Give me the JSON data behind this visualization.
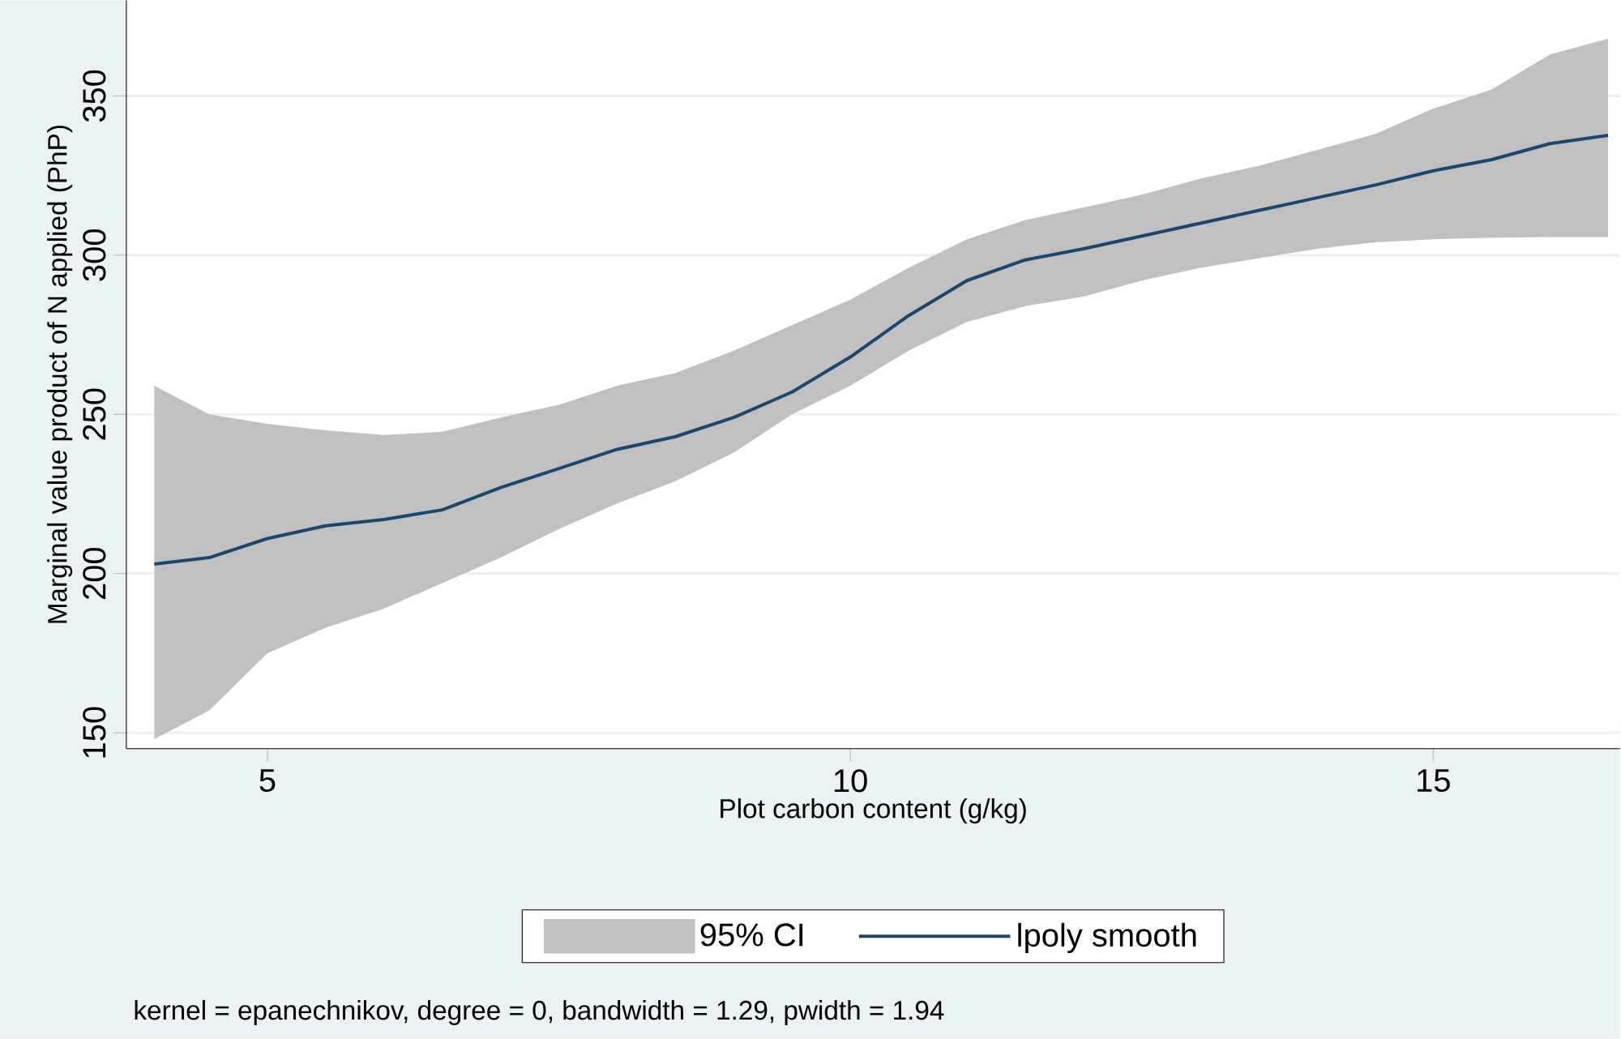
{
  "chart_data": {
    "type": "line",
    "xlabel": "Plot carbon content (g/kg)",
    "ylabel": "Marginal value product of N applied (PhP)",
    "x": [
      4.03,
      4.5,
      5,
      5.5,
      6,
      6.5,
      7,
      7.5,
      8,
      8.5,
      9,
      9.5,
      10,
      10.5,
      11,
      11.5,
      12,
      12.5,
      13,
      13.5,
      14,
      14.5,
      15,
      15.5,
      16,
      16.5
    ],
    "series": [
      {
        "name": "95% CI",
        "type": "area",
        "color": "#c0c0c0",
        "values": [
          null,
          null,
          null,
          null,
          null,
          null,
          null,
          null,
          null,
          null,
          null,
          null,
          null,
          null,
          null,
          null,
          null,
          null,
          null,
          null,
          null,
          null,
          null,
          null,
          null,
          null
        ]
      },
      {
        "name": "lpoly smooth",
        "color": "#1a476f",
        "values": [
          203,
          205,
          211,
          215,
          217,
          220,
          227,
          233,
          239,
          243,
          249,
          257,
          268,
          281,
          292,
          298.5,
          302,
          306,
          310,
          314,
          318,
          322,
          326.5,
          330,
          335,
          337.6
        ],
        "lower": [
          148,
          157,
          175,
          183,
          189,
          197,
          205,
          214,
          222,
          229,
          238,
          250,
          259,
          270,
          279,
          284,
          287,
          292,
          296,
          299,
          302,
          304,
          305,
          305.5,
          305.7,
          305.7
        ],
        "upper": [
          259,
          250,
          247,
          245,
          243.5,
          244.5,
          249,
          253,
          259,
          263,
          270,
          278,
          286,
          296,
          305,
          311,
          315,
          319,
          324,
          328,
          333,
          338,
          346,
          352,
          363,
          368
        ]
      }
    ],
    "xlim": [
      3.79,
      16.6
    ],
    "ylim": [
      145,
      380
    ],
    "xticks": [
      5,
      10,
      15
    ],
    "yticks": [
      150,
      200,
      250,
      300,
      350
    ],
    "grid": "y",
    "legend": "bottom",
    "annotations": [
      "kernel = epanechnikov, degree = 0, bandwidth = 1.29, pwidth = 1.94"
    ]
  }
}
